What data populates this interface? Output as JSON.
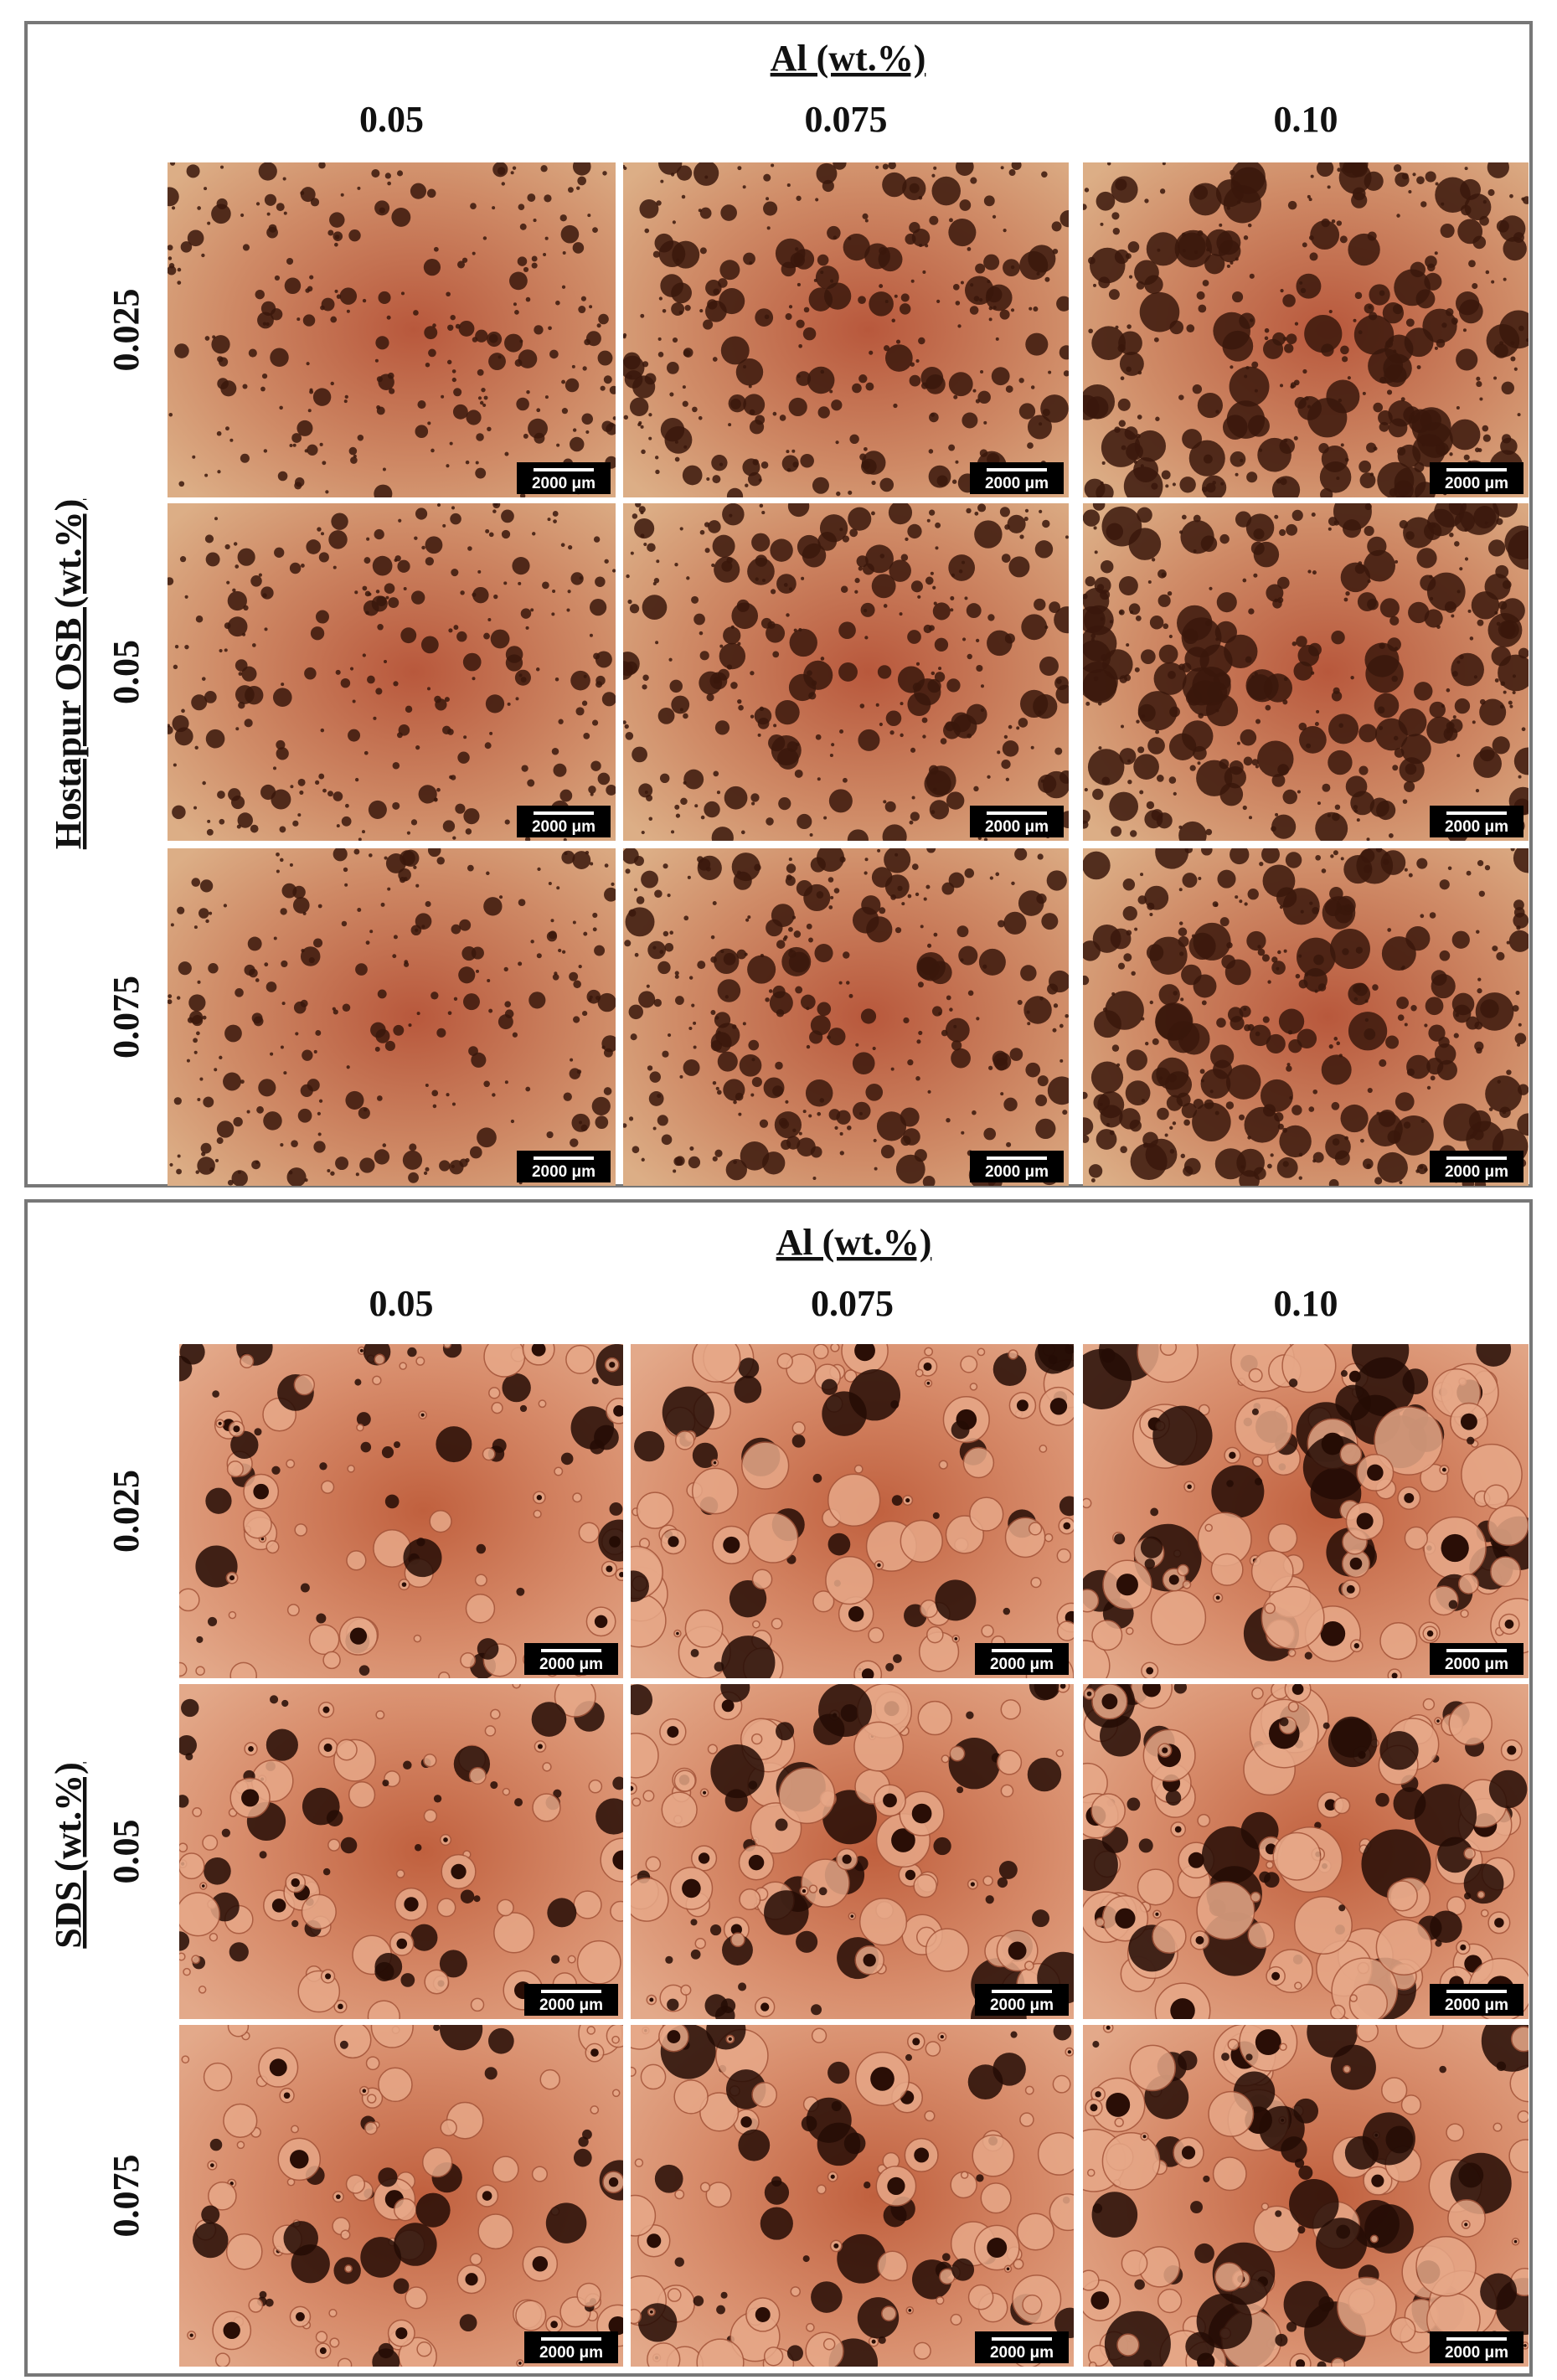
{
  "panels": [
    {
      "column_axis_label": "Al (wt.%)",
      "columns": [
        "0.05",
        "0.075",
        "0.10"
      ],
      "row_axis_label": "Hostapur OSB (wt.%)",
      "rows": [
        "0.025",
        "0.05",
        "0.075"
      ]
    },
    {
      "column_axis_label": "Al (wt.%)",
      "columns": [
        "0.05",
        "0.075",
        "0.10"
      ],
      "row_axis_label": "SDS (wt.%)",
      "rows": [
        "0.025",
        "0.05",
        "0.075"
      ]
    }
  ],
  "scale_bar": "2000 μm"
}
